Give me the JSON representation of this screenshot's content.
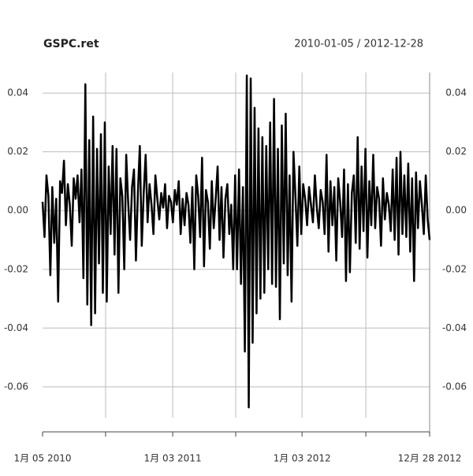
{
  "chart_data": {
    "type": "line",
    "title": "GSPC.ret",
    "subtitle": "2010-01-05 / 2012-12-28",
    "color": "#000000",
    "grid": true,
    "values": [
      0.003,
      -0.009,
      0.012,
      0.005,
      -0.022,
      0.008,
      -0.011,
      0.004,
      -0.031,
      0.01,
      0.006,
      0.017,
      -0.005,
      0.009,
      0.002,
      -0.012,
      0.011,
      0.004,
      0.012,
      -0.004,
      0.014,
      -0.023,
      0.043,
      -0.032,
      0.024,
      -0.039,
      0.032,
      -0.035,
      0.021,
      -0.018,
      0.026,
      -0.028,
      0.03,
      -0.031,
      0.015,
      -0.008,
      0.022,
      -0.015,
      0.021,
      -0.028,
      0.011,
      0.005,
      -0.02,
      0.019,
      0.003,
      -0.01,
      0.008,
      0.014,
      -0.017,
      0.006,
      0.022,
      -0.012,
      0.006,
      0.019,
      -0.004,
      0.009,
      0.002,
      -0.008,
      0.012,
      0.004,
      -0.003,
      0.006,
      0.001,
      0.009,
      -0.006,
      0.005,
      0.003,
      -0.004,
      0.007,
      0.002,
      0.01,
      -0.008,
      0.004,
      -0.005,
      0.006,
      0.002,
      -0.011,
      0.008,
      -0.02,
      0.012,
      0.005,
      -0.009,
      0.018,
      -0.019,
      0.007,
      0.003,
      -0.013,
      0.01,
      -0.006,
      0.004,
      0.015,
      -0.01,
      0.008,
      -0.016,
      0.004,
      0.009,
      -0.008,
      0.002,
      -0.02,
      0.012,
      -0.02,
      0.014,
      -0.025,
      0.008,
      -0.048,
      0.046,
      -0.067,
      0.045,
      -0.045,
      0.035,
      -0.035,
      0.028,
      -0.03,
      0.025,
      -0.028,
      0.022,
      -0.02,
      0.03,
      -0.025,
      0.038,
      -0.026,
      0.021,
      -0.037,
      0.029,
      -0.018,
      0.033,
      -0.022,
      0.012,
      -0.031,
      0.02,
      0.005,
      -0.012,
      0.015,
      -0.008,
      0.009,
      0.004,
      -0.005,
      0.008,
      0.002,
      -0.004,
      0.012,
      0.001,
      -0.006,
      0.007,
      0.003,
      -0.008,
      0.019,
      -0.014,
      0.01,
      -0.005,
      0.008,
      -0.017,
      0.011,
      0.003,
      -0.009,
      0.014,
      -0.024,
      0.009,
      -0.021,
      0.006,
      0.012,
      -0.011,
      0.025,
      -0.013,
      0.015,
      -0.007,
      0.021,
      -0.016,
      0.01,
      -0.005,
      0.019,
      -0.006,
      0.008,
      0.004,
      -0.012,
      0.011,
      -0.003,
      0.006,
      0.002,
      -0.007,
      0.014,
      -0.01,
      0.018,
      -0.015,
      0.02,
      -0.008,
      0.012,
      -0.009,
      0.016,
      -0.014,
      0.011,
      -0.024,
      0.013,
      -0.006,
      0.01,
      0.002,
      -0.008,
      0.012,
      -0.003,
      -0.01
    ],
    "xlim": [
      0,
      199
    ],
    "xticks": [
      {
        "value": 0,
        "label": "1月 05 2010"
      },
      {
        "value": 66.9,
        "label": "1月 03 2011"
      },
      {
        "value": 133.4,
        "label": "1月 03 2012"
      },
      {
        "value": 199,
        "label": "12月 28 2012"
      }
    ],
    "minor_xticks": [
      32.4,
      99.3,
      166.2
    ],
    "ylim": [
      -0.0705,
      0.047
    ],
    "yticks": [
      0.04,
      0.02,
      {
        "value": 0,
        "label": "0.00"
      },
      -0.02,
      -0.04,
      -0.06
    ]
  }
}
